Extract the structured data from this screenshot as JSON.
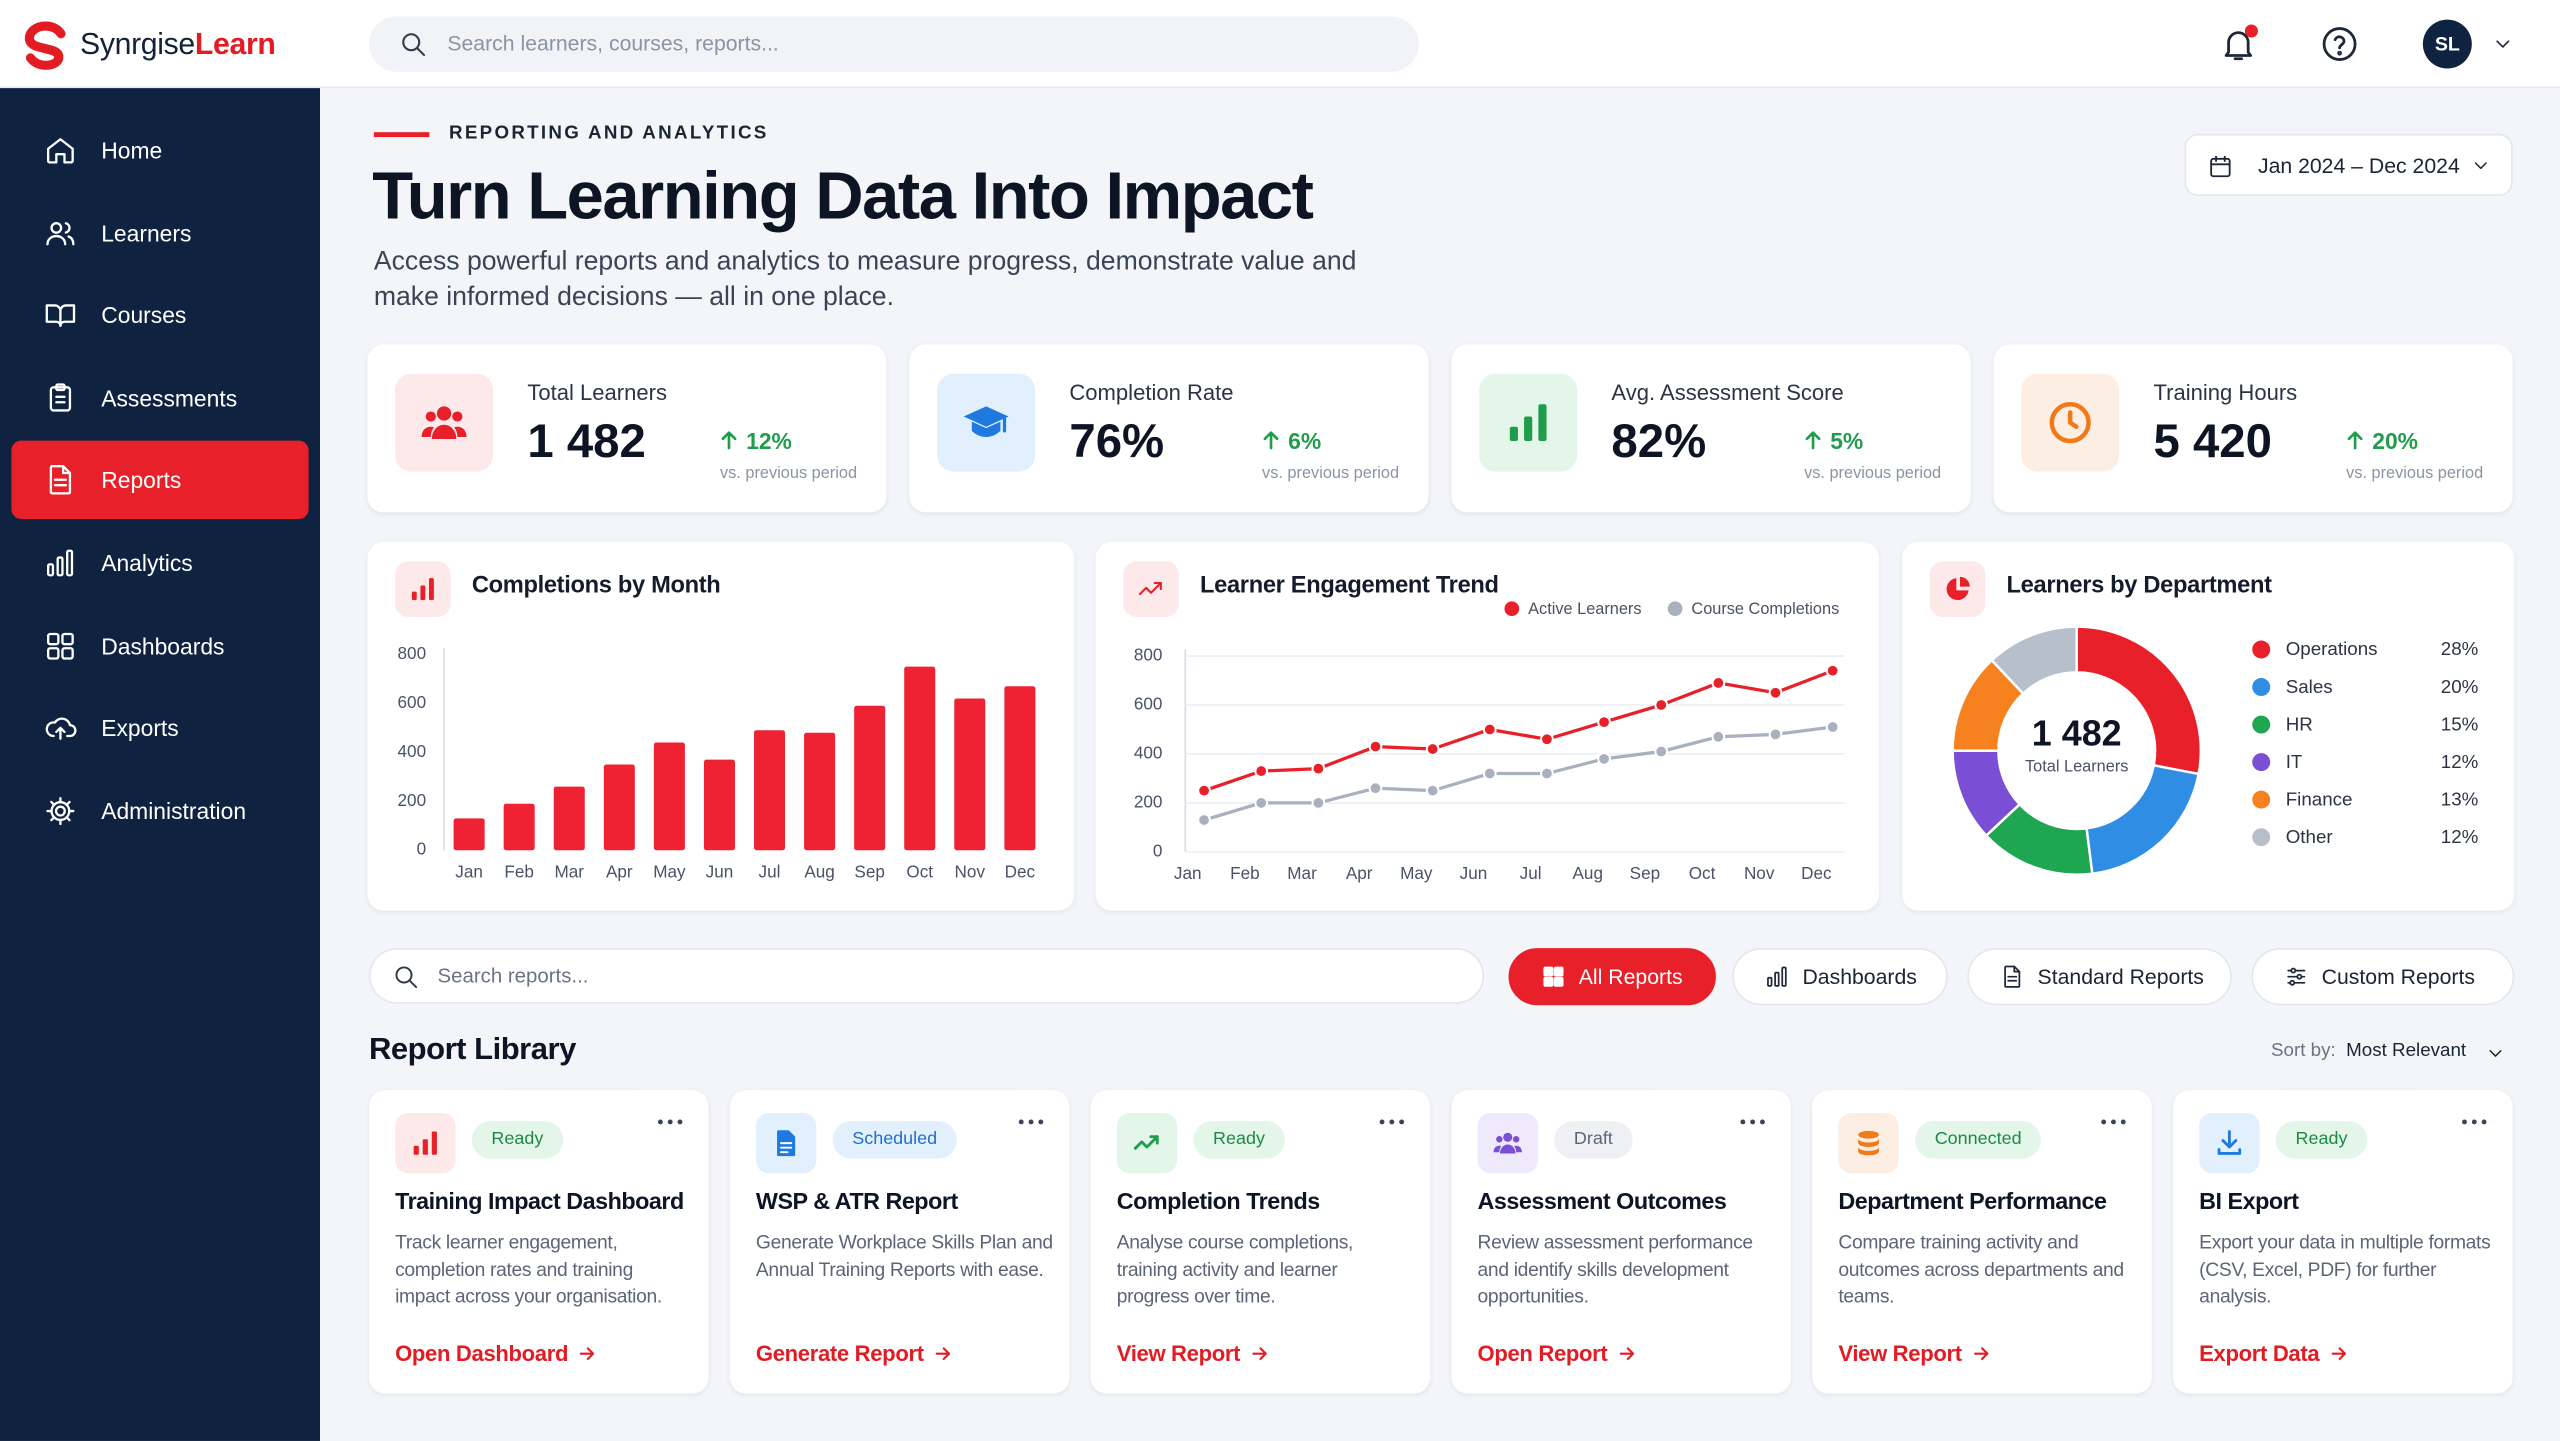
{
  "brand": {
    "name_first": "Synrgise",
    "name_second": "Learn"
  },
  "search_placeholder": "Search learners, courses, reports...",
  "user_initials": "SL",
  "nav": [
    {
      "label": "Home"
    },
    {
      "label": "Learners"
    },
    {
      "label": "Courses"
    },
    {
      "label": "Assessments"
    },
    {
      "label": "Reports",
      "active": true
    },
    {
      "label": "Analytics"
    },
    {
      "label": "Dashboards"
    },
    {
      "label": "Exports"
    },
    {
      "label": "Administration"
    }
  ],
  "header": {
    "eyebrow": "REPORTING AND ANALYTICS",
    "title": "Turn Learning Data Into Impact",
    "description": "Access powerful reports and analytics to measure progress, demonstrate value and make informed decisions — all in one place.",
    "date_range": "Jan 2024 – Dec 2024"
  },
  "kpis": [
    {
      "label": "Total Learners",
      "value": "1 482",
      "change": "12%",
      "note": "vs. previous period"
    },
    {
      "label": "Completion Rate",
      "value": "76%",
      "change": "6%",
      "note": "vs. previous period"
    },
    {
      "label": "Avg. Assessment Score",
      "value": "82%",
      "change": "5%",
      "note": "vs. previous period"
    },
    {
      "label": "Training Hours",
      "value": "5 420",
      "change": "20%",
      "note": "vs. previous period"
    }
  ],
  "charts": {
    "completions": {
      "type": "bar",
      "title": "Completions by Month",
      "categories": [
        "Jan",
        "Feb",
        "Mar",
        "Apr",
        "May",
        "Jun",
        "Jul",
        "Aug",
        "Sep",
        "Oct",
        "Nov",
        "Dec"
      ],
      "values": [
        130,
        190,
        260,
        350,
        440,
        370,
        490,
        480,
        590,
        750,
        620,
        670
      ],
      "color": "#ee2233",
      "ylim": [
        0,
        800
      ],
      "yticks": [
        0,
        200,
        400,
        600,
        800
      ],
      "grid": false
    },
    "engagement": {
      "type": "line",
      "title": "Learner Engagement Trend",
      "categories": [
        "Jan",
        "Feb",
        "Mar",
        "Apr",
        "May",
        "Jun",
        "Jul",
        "Aug",
        "Sep",
        "Oct",
        "Nov",
        "Dec"
      ],
      "series": [
        {
          "name": "Active Learners",
          "color": "#e8202a",
          "values": [
            250,
            330,
            340,
            430,
            420,
            500,
            460,
            530,
            600,
            690,
            650,
            740
          ]
        },
        {
          "name": "Course Completions",
          "color": "#a9b1bf",
          "values": [
            130,
            200,
            200,
            260,
            250,
            320,
            320,
            380,
            410,
            470,
            480,
            510
          ]
        }
      ],
      "ylim": [
        0,
        800
      ],
      "yticks": [
        0,
        200,
        400,
        600,
        800
      ],
      "grid": true
    },
    "departments": {
      "type": "donut",
      "title": "Learners by Department",
      "center_value": "1 482",
      "center_label": "Total Learners",
      "categories": [
        "Operations",
        "Sales",
        "HR",
        "IT",
        "Finance",
        "Other"
      ],
      "values": [
        28,
        20,
        15,
        12,
        13,
        12
      ],
      "value_labels": [
        "28%",
        "20%",
        "15%",
        "12%",
        "13%",
        "12%"
      ],
      "colors": [
        "#e8202a",
        "#2f8de4",
        "#1fa650",
        "#7a4fd6",
        "#f5821f",
        "#b7bfcb"
      ]
    }
  },
  "filters": {
    "search_placeholder": "Search reports...",
    "tabs": [
      {
        "label": "All Reports",
        "active": true
      },
      {
        "label": "Dashboards"
      },
      {
        "label": "Standard Reports"
      },
      {
        "label": "Custom Reports"
      }
    ]
  },
  "library": {
    "title": "Report Library",
    "sort_label": "Sort by:",
    "sort_value": "Most Relevant",
    "cards": [
      {
        "status": "Ready",
        "title": "Training Impact Dashboard",
        "description": "Track learner engagement, completion rates and training impact across your organisation.",
        "action": "Open Dashboard"
      },
      {
        "status": "Scheduled",
        "title": "WSP & ATR Report",
        "description": "Generate Workplace Skills Plan and Annual Training Reports with ease.",
        "action": "Generate Report"
      },
      {
        "status": "Ready",
        "title": "Completion Trends",
        "description": "Analyse course completions, training activity and learner progress over time.",
        "action": "View Report"
      },
      {
        "status": "Draft",
        "title": "Assessment Outcomes",
        "description": "Review assessment performance and identify skills development opportunities.",
        "action": "Open Report"
      },
      {
        "status": "Connected",
        "title": "Department Performance",
        "description": "Compare training activity and outcomes across departments and teams.",
        "action": "View Report"
      },
      {
        "status": "Ready",
        "title": "BI Export",
        "description": "Export your data in multiple formats (CSV, Excel, PDF) for further analysis.",
        "action": "Export Data"
      }
    ]
  }
}
